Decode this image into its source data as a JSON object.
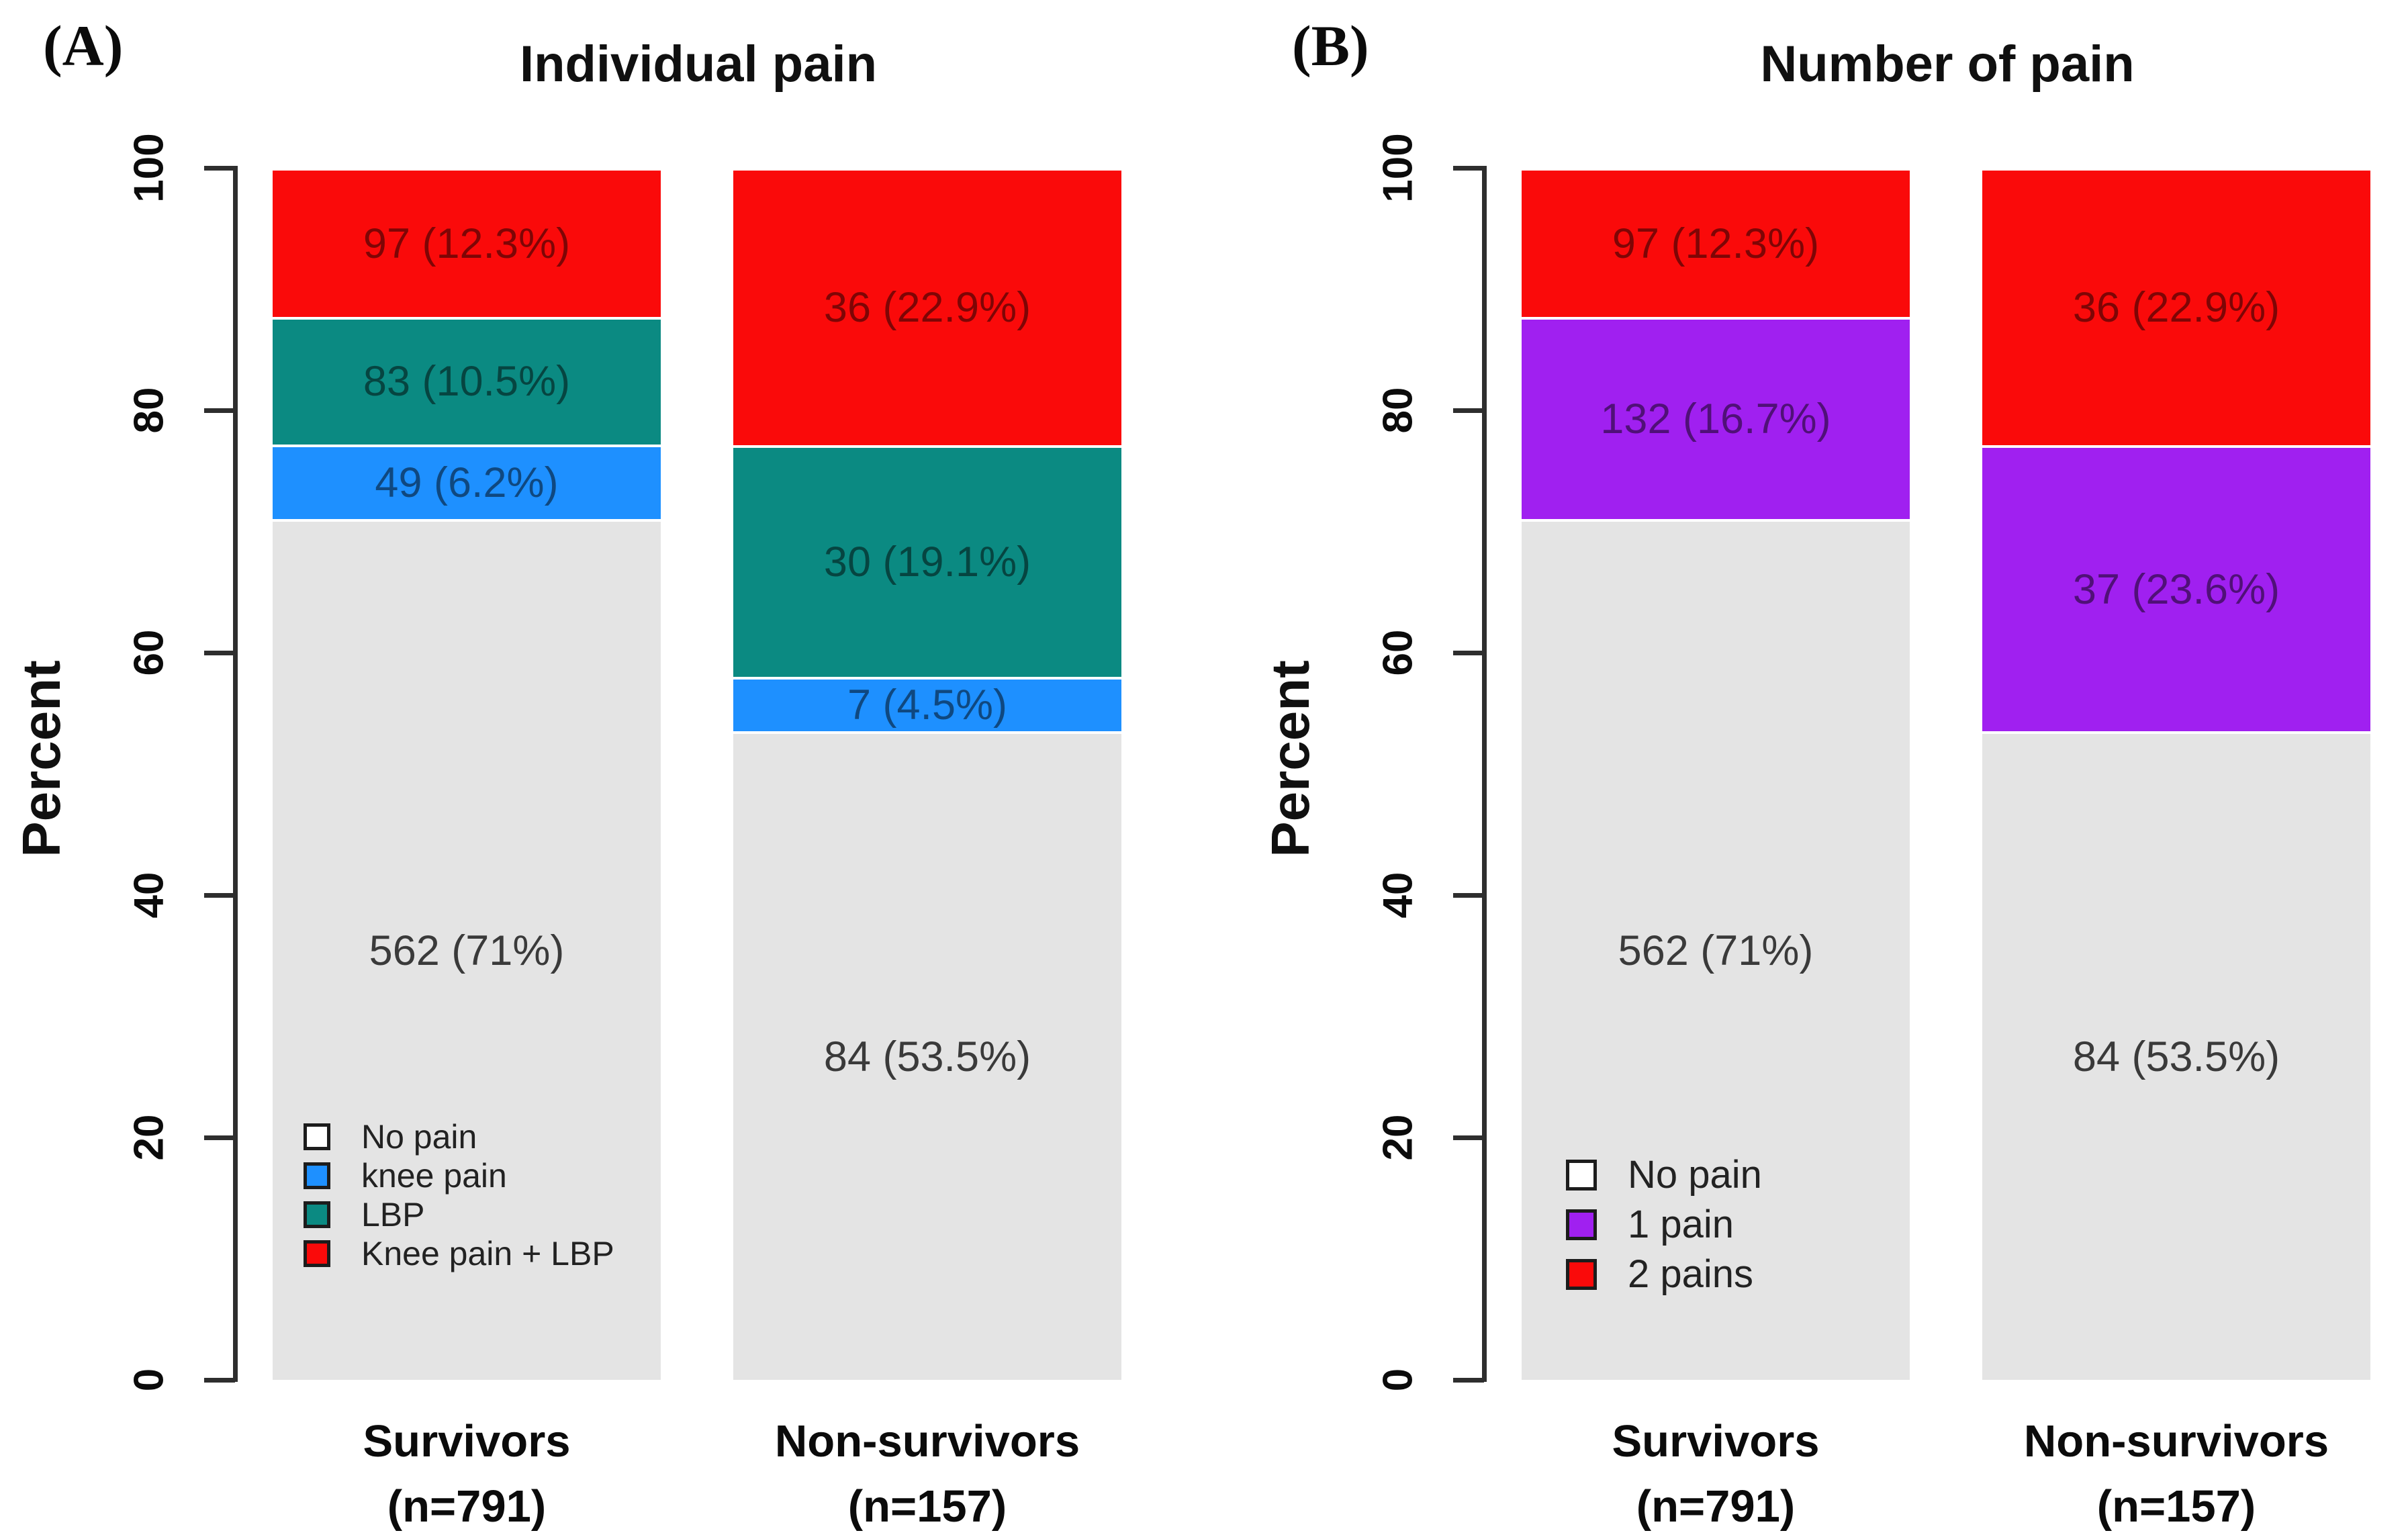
{
  "figure": {
    "description": "Two-panel stacked bar chart comparing pain prevalence in survivors and non-survivors",
    "background": "#FFFFFF"
  },
  "chart_data": [
    {
      "type": "bar",
      "stacked": true,
      "panel_label": "(A)",
      "title": "Individual pain",
      "ylabel": "Percent",
      "ylim": [
        0,
        100
      ],
      "yticks": [
        0,
        20,
        40,
        60,
        80,
        100
      ],
      "grid": false,
      "legend_position": "inside-bottom-left",
      "categories": [
        "Survivors (n=791)",
        "Non-survivors (n=157)"
      ],
      "category_lines": [
        [
          "Survivors",
          "(n=791)"
        ],
        [
          "Non-survivors",
          "(n=157)"
        ]
      ],
      "series": [
        {
          "name": "No pain",
          "color": "#E4E4E4",
          "legend_swatch": "#FFFFFF",
          "label_color": "#3A3A3A",
          "values": [
            562,
            84
          ],
          "pcts": [
            71,
            53.5
          ],
          "labels": [
            "562 (71%)",
            "84 (53.5%)"
          ]
        },
        {
          "name": "knee pain",
          "color": "#1E90FF",
          "legend_swatch": "#1E90FF",
          "label_color": "#0F4880",
          "values": [
            49,
            7
          ],
          "pcts": [
            6.2,
            4.5
          ],
          "labels": [
            "49 (6.2%)",
            "7 (4.5%)"
          ]
        },
        {
          "name": "LBP",
          "color": "#0B8A82",
          "legend_swatch": "#0B8A82",
          "label_color": "#064541",
          "values": [
            83,
            30
          ],
          "pcts": [
            10.5,
            19.1
          ],
          "labels": [
            "83 (10.5%)",
            "30 (19.1%)"
          ]
        },
        {
          "name": "Knee pain + LBP",
          "color": "#FA0A0A",
          "legend_swatch": "#FA0A0A",
          "label_color": "#7E0505",
          "values": [
            97,
            36
          ],
          "pcts": [
            12.3,
            22.9
          ],
          "labels": [
            "97 (12.3%)",
            "36 (22.9%)"
          ]
        }
      ]
    },
    {
      "type": "bar",
      "stacked": true,
      "panel_label": "(B)",
      "title": "Number of pain",
      "ylabel": "Percent",
      "ylim": [
        0,
        100
      ],
      "yticks": [
        0,
        20,
        40,
        60,
        80,
        100
      ],
      "grid": false,
      "legend_position": "inside-bottom-left",
      "categories": [
        "Survivors (n=791)",
        "Non-survivors (n=157)"
      ],
      "category_lines": [
        [
          "Survivors",
          "(n=791)"
        ],
        [
          "Non-survivors",
          "(n=157)"
        ]
      ],
      "series": [
        {
          "name": "No pain",
          "color": "#E4E4E4",
          "legend_swatch": "#FFFFFF",
          "label_color": "#3A3A3A",
          "values": [
            562,
            84
          ],
          "pcts": [
            71,
            53.5
          ],
          "labels": [
            "562 (71%)",
            "84 (53.5%)"
          ]
        },
        {
          "name": "1 pain",
          "color": "#A020F0",
          "legend_swatch": "#A020F0",
          "label_color": "#501078",
          "values": [
            132,
            37
          ],
          "pcts": [
            16.7,
            23.6
          ],
          "labels": [
            "132 (16.7%)",
            "37 (23.6%)"
          ]
        },
        {
          "name": "2 pains",
          "color": "#FA0A0A",
          "legend_swatch": "#FA0A0A",
          "label_color": "#7E0505",
          "values": [
            97,
            36
          ],
          "pcts": [
            12.3,
            22.9
          ],
          "labels": [
            "97 (12.3%)",
            "36 (22.9%)"
          ]
        }
      ]
    }
  ]
}
